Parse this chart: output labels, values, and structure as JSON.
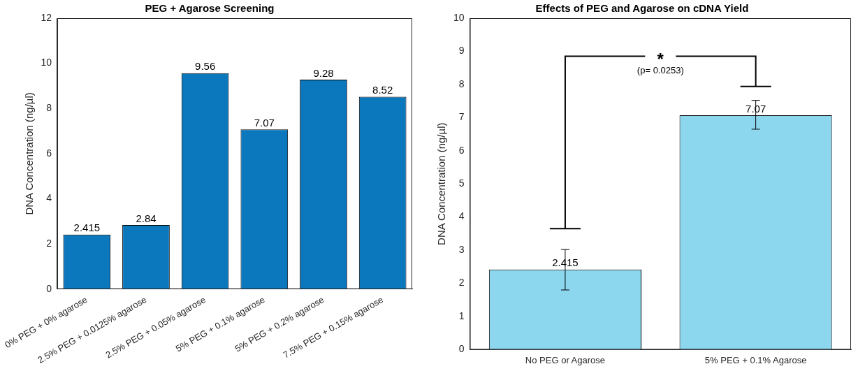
{
  "chart_data": [
    {
      "type": "bar",
      "title": "PEG + Agarose Screening",
      "ylabel": "DNA Concentration (ng/µl)",
      "categories": [
        "0% PEG + 0% agarose",
        "2.5% PEG + 0.0125% agarose",
        "2.5% PEG + 0.05% agarose",
        "5% PEG + 0.1% agarose",
        "5% PEG + 0.2% agarose",
        "7.5% PEG + 0.15% agarose"
      ],
      "values": [
        2.415,
        2.84,
        9.56,
        7.07,
        9.28,
        8.52
      ],
      "color": "#0b77bd",
      "ylim": [
        0,
        12
      ],
      "yticks": [
        0,
        2,
        4,
        6,
        8,
        10,
        12
      ],
      "data_labels": true
    },
    {
      "type": "bar",
      "title": "Effects of PEG and Agarose on cDNA Yield",
      "ylabel": "DNA Concentration (ng/µl)",
      "categories": [
        "No PEG or Agarose",
        "5% PEG + 0.1% Agarose"
      ],
      "values": [
        2.415,
        7.07
      ],
      "errors": [
        [
          1.8,
          3.02
        ],
        [
          6.65,
          7.52
        ]
      ],
      "color": "#8cd6ee",
      "ylim": [
        0,
        10
      ],
      "yticks": [
        0,
        1,
        2,
        3,
        4,
        5,
        6,
        7,
        8,
        9,
        10
      ],
      "data_labels": true,
      "annotations": [
        "*",
        "(p= 0.0253)"
      ]
    }
  ]
}
